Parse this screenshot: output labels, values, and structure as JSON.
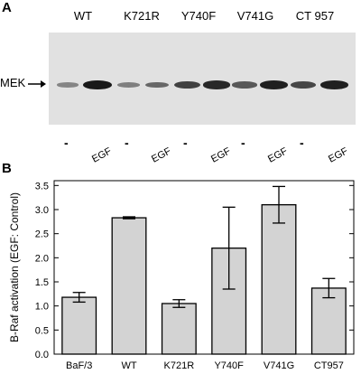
{
  "panel_a": {
    "label": "A",
    "lanes": [
      "WT",
      "K721R",
      "Y740F",
      "V741G",
      "CT 957"
    ],
    "marker": "MEK",
    "conditions": [
      "-",
      "EGF",
      "-",
      "EGF",
      "-",
      "EGF",
      "-",
      "EGF",
      "-",
      "EGF"
    ],
    "band_intensity": [
      0.25,
      0.95,
      0.3,
      0.45,
      0.7,
      0.85,
      0.55,
      0.9,
      0.65,
      0.9
    ]
  },
  "panel_b": {
    "label": "B"
  },
  "chart_data": {
    "type": "bar",
    "categories": [
      "BaF/3",
      "WT",
      "K721R",
      "Y740F",
      "V741G",
      "CT957"
    ],
    "values": [
      1.18,
      2.83,
      1.05,
      2.2,
      3.1,
      1.37
    ],
    "error": [
      0.1,
      0.02,
      0.08,
      0.85,
      0.38,
      0.2
    ],
    "ylabel": "B-Raf activation (EGF: Control)",
    "xlabel": "",
    "ylim": [
      0,
      3.6
    ],
    "yticks": [
      "0.0",
      "0.5",
      "1.0",
      "1.5",
      "2.0",
      "2.5",
      "3.0",
      "3.5"
    ],
    "colors": {
      "bar_fill": "#d3d3d3",
      "bar_stroke": "#000000"
    }
  }
}
